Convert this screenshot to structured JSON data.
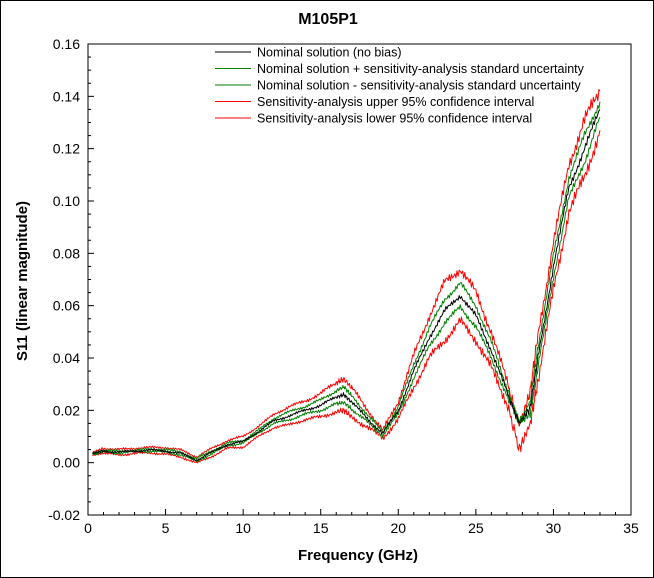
{
  "chart_data": {
    "type": "line",
    "title": "M105P1",
    "xlabel": "Frequency (GHz)",
    "ylabel": "S11 (linear magnitude)",
    "xlim": [
      0,
      35
    ],
    "ylim": [
      -0.02,
      0.16
    ],
    "xticks": [
      0,
      5,
      10,
      15,
      20,
      25,
      30,
      35
    ],
    "xtick_labels": [
      "0",
      "5",
      "10",
      "15",
      "20",
      "25",
      "30",
      "35"
    ],
    "yticks": [
      -0.02,
      0.0,
      0.02,
      0.04,
      0.06,
      0.08,
      0.1,
      0.12,
      0.14,
      0.16
    ],
    "ytick_labels": [
      "-0.02",
      "0.00",
      "0.02",
      "0.04",
      "0.06",
      "0.08",
      "0.10",
      "0.12",
      "0.14",
      "0.16"
    ],
    "grid": false,
    "legend_position": "top-right",
    "x": [
      0.3,
      1,
      2,
      3,
      4,
      5,
      6,
      7,
      8,
      9,
      10,
      11,
      12,
      13,
      14,
      15,
      16,
      16.5,
      17,
      18,
      19,
      20,
      21,
      22,
      23,
      24,
      25,
      26,
      27,
      27.8,
      28.5,
      29,
      30,
      31,
      32,
      33
    ],
    "series": [
      {
        "name": "Nominal solution (no bias)",
        "color": "#000000",
        "values": [
          0.0035,
          0.0045,
          0.004,
          0.0045,
          0.0048,
          0.0045,
          0.0035,
          0.001,
          0.004,
          0.007,
          0.008,
          0.012,
          0.016,
          0.018,
          0.02,
          0.022,
          0.025,
          0.026,
          0.023,
          0.017,
          0.011,
          0.02,
          0.035,
          0.048,
          0.058,
          0.064,
          0.056,
          0.043,
          0.027,
          0.015,
          0.021,
          0.04,
          0.075,
          0.105,
          0.12,
          0.135
        ]
      },
      {
        "name": "Nominal solution + sensitivity-analysis standard uncertainty",
        "color": "#008000",
        "values": [
          0.0037,
          0.0048,
          0.0043,
          0.0048,
          0.0052,
          0.005,
          0.004,
          0.0015,
          0.0045,
          0.0075,
          0.0085,
          0.0125,
          0.017,
          0.0195,
          0.0215,
          0.024,
          0.0275,
          0.029,
          0.0255,
          0.0185,
          0.0115,
          0.0215,
          0.0375,
          0.0515,
          0.0625,
          0.0685,
          0.06,
          0.046,
          0.0285,
          0.015,
          0.0235,
          0.044,
          0.079,
          0.109,
          0.125,
          0.138
        ]
      },
      {
        "name": "Nominal solution - sensitivity-analysis standard uncertainty",
        "color": "#008000",
        "values": [
          0.0033,
          0.0042,
          0.0037,
          0.0042,
          0.0044,
          0.004,
          0.003,
          0.0005,
          0.0035,
          0.0065,
          0.0075,
          0.0115,
          0.015,
          0.0165,
          0.0185,
          0.02,
          0.0225,
          0.023,
          0.0205,
          0.0155,
          0.0105,
          0.0185,
          0.0325,
          0.0445,
          0.0535,
          0.0595,
          0.052,
          0.04,
          0.0255,
          0.016,
          0.0185,
          0.036,
          0.071,
          0.101,
          0.115,
          0.132
        ]
      },
      {
        "name": "Sensitivity-analysis upper 95% confidence interval",
        "color": "#ff0000",
        "values": [
          0.004,
          0.0055,
          0.005,
          0.0055,
          0.0058,
          0.0058,
          0.0048,
          0.0022,
          0.0055,
          0.0085,
          0.01,
          0.014,
          0.0185,
          0.0215,
          0.0235,
          0.0265,
          0.0305,
          0.032,
          0.0285,
          0.0205,
          0.012,
          0.0235,
          0.041,
          0.056,
          0.069,
          0.074,
          0.065,
          0.05,
          0.031,
          0.014,
          0.027,
          0.049,
          0.084,
          0.114,
          0.131,
          0.142
        ]
      },
      {
        "name": "Sensitivity-analysis lower 95% confidence interval",
        "color": "#ff0000",
        "values": [
          0.003,
          0.0035,
          0.003,
          0.0035,
          0.0038,
          0.0032,
          0.0022,
          -0.0002,
          0.0025,
          0.0055,
          0.006,
          0.01,
          0.0135,
          0.0145,
          0.0165,
          0.0175,
          0.0195,
          0.02,
          0.0175,
          0.0135,
          0.0095,
          0.0165,
          0.029,
          0.04,
          0.047,
          0.054,
          0.047,
          0.036,
          0.023,
          0.005,
          0.015,
          0.031,
          0.066,
          0.096,
          0.109,
          0.127
        ]
      }
    ]
  }
}
